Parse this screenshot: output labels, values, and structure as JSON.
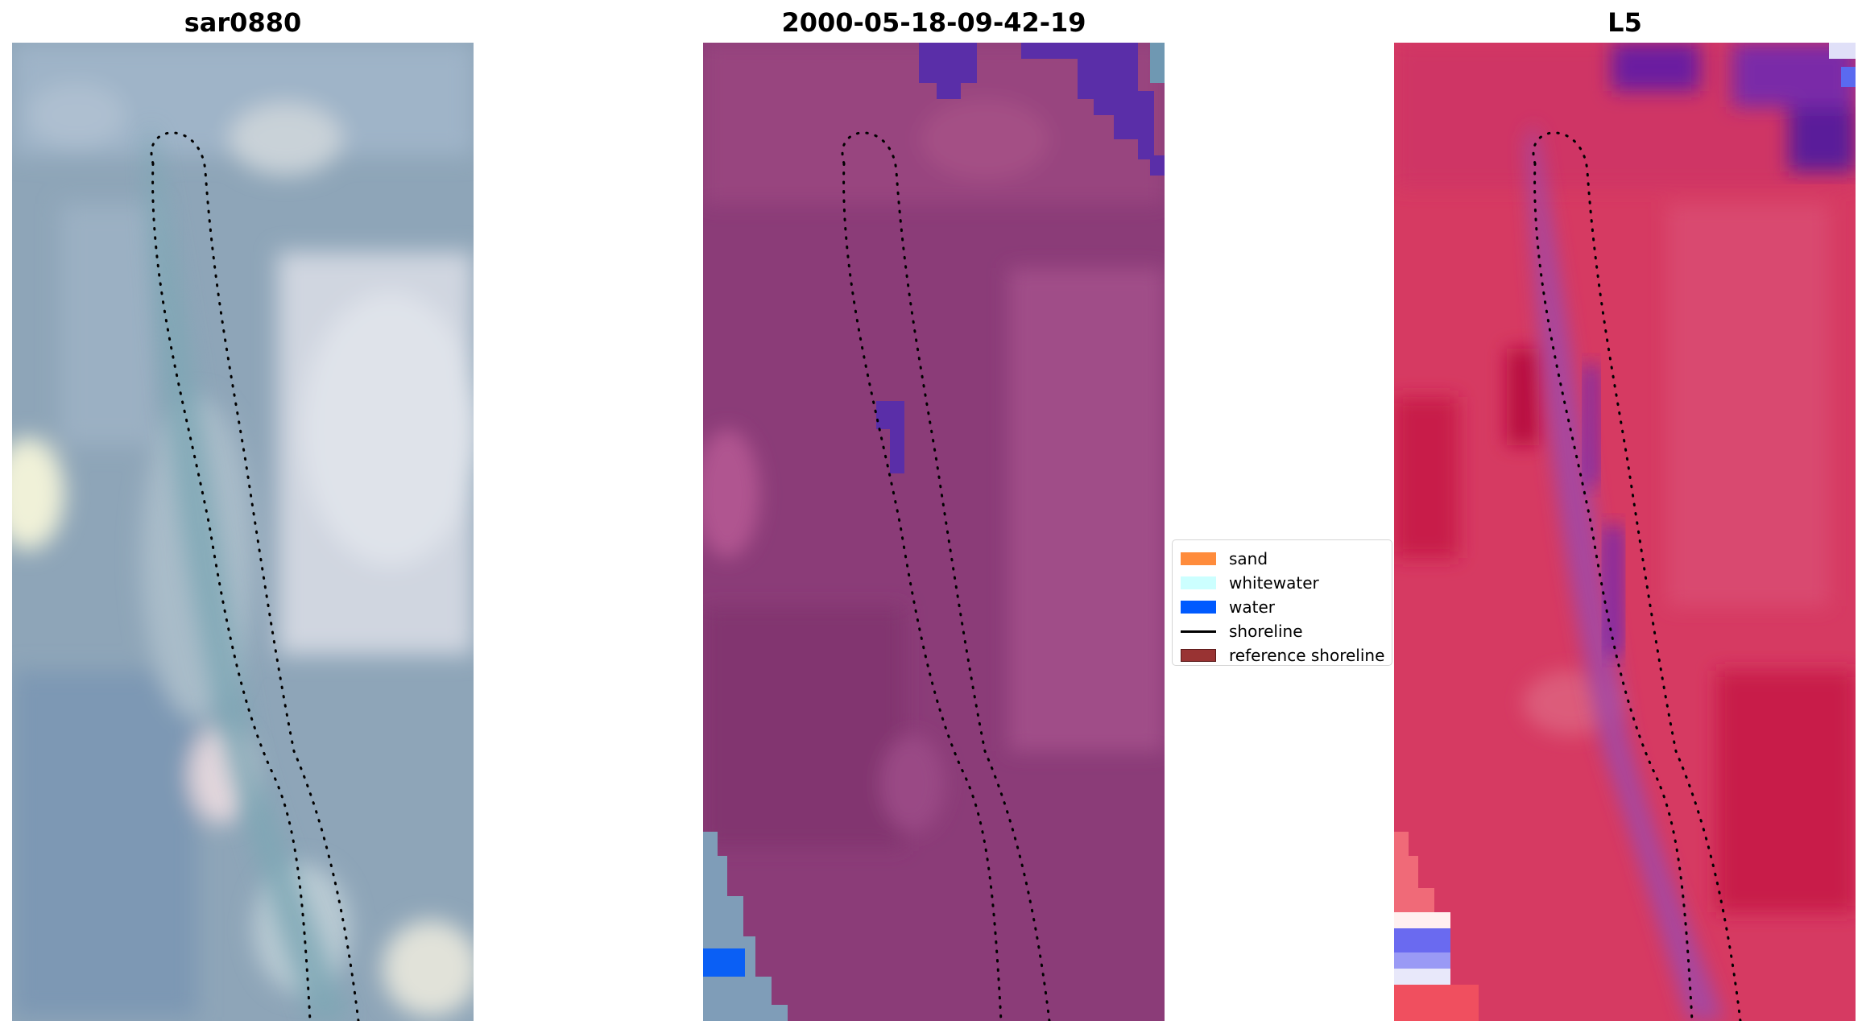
{
  "panels": [
    {
      "title": "sar0880"
    },
    {
      "title": "2000-05-18-09-42-19"
    },
    {
      "title": "L5"
    }
  ],
  "legend": {
    "items": [
      {
        "label": "sand",
        "color": "#ff8c3c",
        "kind": "patch"
      },
      {
        "label": "whitewater",
        "color": "#ccffff",
        "kind": "patch"
      },
      {
        "label": "water",
        "color": "#005aff",
        "kind": "patch"
      },
      {
        "label": "shoreline",
        "color": "#000000",
        "kind": "line"
      },
      {
        "label": "reference shoreline",
        "color": "#993333",
        "kind": "patch"
      }
    ]
  }
}
